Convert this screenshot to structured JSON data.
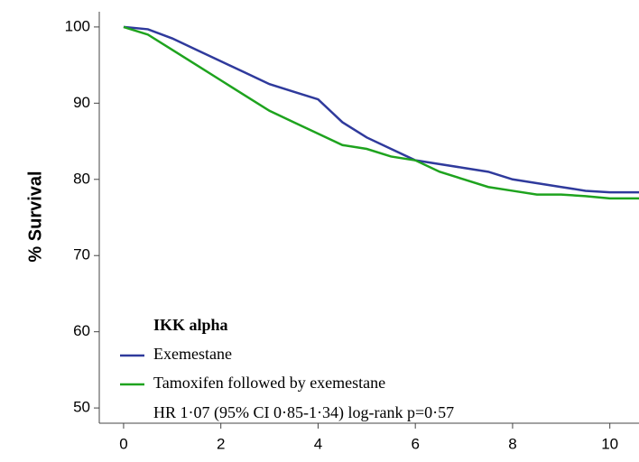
{
  "chart_data": {
    "type": "line",
    "y_label": "% Survival",
    "legend_title": "IKK alpha",
    "annotation": "HR 1·07 (95% CI 0·85-1·34) log-rank p=0·57",
    "x": [
      0,
      0.5,
      1,
      1.5,
      2,
      2.5,
      3,
      3.5,
      4,
      4.5,
      5,
      5.5,
      6,
      6.5,
      7,
      7.5,
      8,
      8.5,
      9,
      9.5,
      10,
      10.6
    ],
    "series": [
      {
        "name": "Exemestane",
        "color": "#2f3a9c",
        "values": [
          100,
          99.7,
          98.5,
          97,
          95.5,
          94,
          92.5,
          91.5,
          90.5,
          87.5,
          85.5,
          84,
          82.5,
          82,
          81.5,
          81,
          80,
          79.5,
          79,
          78.5,
          78.3,
          78.3
        ]
      },
      {
        "name": "Tamoxifen followed by exemestane",
        "color": "#1ea31e",
        "values": [
          100,
          99,
          97,
          95,
          93,
          91,
          89,
          87.5,
          86,
          84.5,
          84,
          83,
          82.5,
          81,
          80,
          79,
          78.5,
          78,
          78,
          77.8,
          77.5,
          77.5
        ]
      }
    ],
    "xlim": [
      -0.5,
      10.6
    ],
    "ylim": [
      48,
      102
    ],
    "xticks": [
      0,
      2,
      4,
      6,
      8,
      10
    ],
    "yticks": [
      50,
      60,
      70,
      80,
      90,
      100
    ]
  }
}
